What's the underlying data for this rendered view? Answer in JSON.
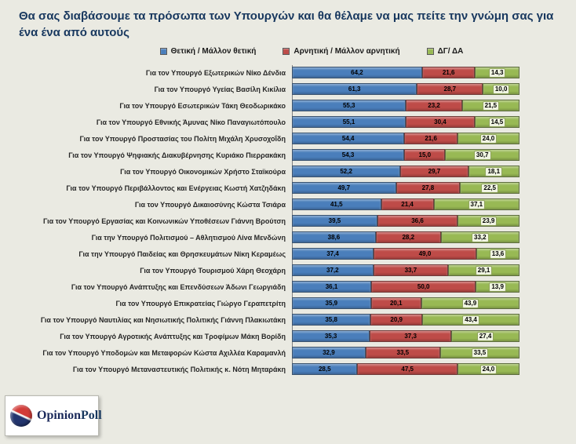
{
  "title": "Θα σας διαβάσουμε τα πρόσωπα των Υπουργών και θα θέλαμε να μας πείτε την γνώμη σας για ένα ένα από αυτούς",
  "legend": [
    {
      "label": "Θετική / Μάλλον θετική",
      "color": "#4A7EBB"
    },
    {
      "label": "Αρνητική / Μάλλον αρνητική",
      "color": "#BE4B48"
    },
    {
      "label": "ΔΓ/ ΔΑ",
      "color": "#98B954"
    }
  ],
  "colors": {
    "background": "#EAEAE2",
    "title": "#17375E",
    "positive": "#4A7EBB",
    "negative": "#BE4B48",
    "dk_na": "#98B954"
  },
  "chart_data": {
    "type": "bar",
    "orientation": "horizontal",
    "stacked": true,
    "xlim": [
      0,
      100
    ],
    "value_labels": true,
    "decimal_separator": ",",
    "categories": [
      "Για τον Υπουργό Εξωτερικών Νίκο Δένδια",
      "Για τον Υπουργό Υγείας Βασίλη Κικίλια",
      "Για τον Υπουργό Εσωτερικών Τάκη Θεοδωρικάκο",
      "Για τον Υπουργό Εθνικής Άμυνας Νίκο Παναγιωτόπουλο",
      "Για τον Υπουργό Προστασίας του Πολίτη Μιχάλη Χρυσοχοΐδη",
      "Για τον Υπουργό Ψηφιακής Διακυβέρνησης Κυριάκο Πιερρακάκη",
      "Για τον Υπουργό Οικονομικών Χρήστο Σταϊκούρα",
      "Για τον Υπουργό Περιβάλλοντος και Ενέργειας Κωστή Χατζηδάκη",
      "Για τον Υπουργό Δικαιοσύνης Κώστα Τσιάρα",
      "Για τον Υπουργό Εργασίας και Κοινωνικών Υποθέσεων Γιάννη Βρούτση",
      "Για την Υπουργό Πολιτισμού – Αθλητισμού Λίνα Μενδώνη",
      "Για την Υπουργό Παιδείας και Θρησκευμάτων Νίκη Κεραμέως",
      "Για τον Υπουργό Τουρισμού Χάρη Θεοχάρη",
      "Για τον Υπουργό Ανάπτυξης και Επενδύσεων Άδωνι Γεωργιάδη",
      "Για τον Υπουργό Επικρατείας Γιώργο Γεραπετρίτη",
      "Για τον Υπουργό Ναυτιλίας και Νησιωτικής Πολιτικής Γιάννη Πλακιωτάκη",
      "Για τον Υπουργό Αγροτικής Ανάπτυξης και Τροφίμων Μάκη Βορίδη",
      "Για τον Υπουργό Υποδομών και Μεταφορών Κώστα Αχιλλέα Καραμανλή",
      "Για τον Υπουργό Μεταναστευτικής Πολιτικής κ. Νότη Μηταράκη"
    ],
    "series": [
      {
        "name": "Θετική / Μάλλον θετική",
        "color": "#4A7EBB",
        "values": [
          64.2,
          61.3,
          55.3,
          55.1,
          54.4,
          54.3,
          52.2,
          49.7,
          41.5,
          39.5,
          38.6,
          37.4,
          37.2,
          36.1,
          35.9,
          35.8,
          35.3,
          32.9,
          28.5
        ]
      },
      {
        "name": "Αρνητική / Μάλλον αρνητική",
        "color": "#BE4B48",
        "values": [
          21.6,
          28.7,
          23.2,
          30.4,
          21.6,
          15.0,
          29.7,
          27.8,
          21.4,
          36.6,
          28.2,
          49.0,
          33.7,
          50.0,
          20.1,
          20.9,
          37.3,
          33.5,
          47.5
        ]
      },
      {
        "name": "ΔΓ/ ΔΑ",
        "color": "#98B954",
        "values": [
          14.3,
          10.0,
          21.5,
          14.5,
          24.0,
          30.7,
          18.1,
          22.5,
          37.1,
          23.9,
          33.2,
          13.6,
          29.1,
          13.9,
          43.9,
          43.4,
          27.4,
          33.5,
          24.0
        ]
      }
    ]
  },
  "logo": {
    "text_primary": "Opinion",
    "text_secondary": "Poll"
  }
}
